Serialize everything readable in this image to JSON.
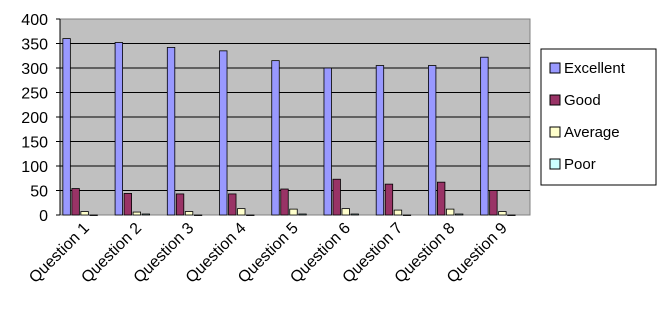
{
  "chart_data": {
    "type": "bar",
    "categories": [
      "Question 1",
      "Question 2",
      "Question 3",
      "Question 4",
      "Question 5",
      "Question 6",
      "Question 7",
      "Question 8",
      "Question 9"
    ],
    "series": [
      {
        "name": "Excellent",
        "color": "#9999ff",
        "values": [
          360,
          352,
          342,
          335,
          315,
          300,
          305,
          305,
          322
        ]
      },
      {
        "name": "Good",
        "color": "#993366",
        "values": [
          54,
          44,
          43,
          43,
          53,
          73,
          63,
          67,
          50
        ]
      },
      {
        "name": "Average",
        "color": "#ffffcc",
        "values": [
          7,
          6,
          7,
          13,
          12,
          13,
          10,
          12,
          7
        ]
      },
      {
        "name": "Poor",
        "color": "#ccffff",
        "values": [
          0,
          2,
          0,
          0,
          2,
          2,
          0,
          2,
          0
        ]
      }
    ],
    "yticks": [
      0,
      50,
      100,
      150,
      200,
      250,
      300,
      350,
      400
    ],
    "ylim": [
      0,
      400
    ],
    "title": "",
    "xlabel": "",
    "ylabel": "",
    "grid": true,
    "legend_position": "right",
    "plot_background": "#c0c0c0"
  }
}
